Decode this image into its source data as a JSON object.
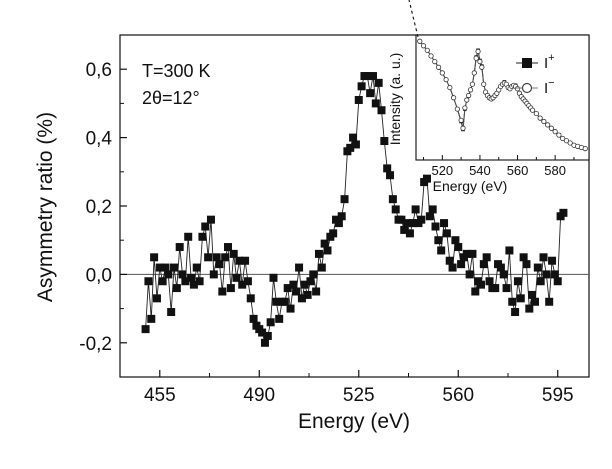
{
  "chart_data": [
    {
      "type": "scatter",
      "title": "",
      "xlabel": "Energy (eV)",
      "ylabel": "Asymmetry ratio (%)",
      "xlim": [
        441,
        606
      ],
      "ylim": [
        -0.3,
        0.7
      ],
      "xticks": [
        455,
        490,
        525,
        560,
        595
      ],
      "xtick_labels": [
        "455",
        "490",
        "525",
        "560",
        "595"
      ],
      "yticks": [
        -0.2,
        0.0,
        0.2,
        0.4,
        0.6
      ],
      "ytick_labels": [
        "-0,2",
        "0,0",
        "0,2",
        "0,4",
        "0,6"
      ],
      "zero_line": 0,
      "annotations": [
        "T=300 K",
        "2θ=12°"
      ],
      "series": [
        {
          "name": "Asymmetry ratio",
          "marker": "filled-square",
          "connected": true,
          "x": [
            450,
            451,
            452,
            453,
            454,
            455,
            456,
            457,
            458,
            459,
            460,
            461,
            462,
            463,
            464,
            465,
            466,
            467,
            468,
            469,
            470,
            471,
            472,
            473,
            474,
            475,
            476,
            477,
            478,
            479,
            480,
            481,
            482,
            483,
            484,
            485,
            486,
            487,
            488,
            489,
            490,
            491,
            492,
            493,
            494,
            495,
            496,
            497,
            498,
            499,
            500,
            501,
            502,
            503,
            504,
            505,
            506,
            507,
            508,
            509,
            510,
            511,
            512,
            513,
            514,
            515,
            516,
            517,
            518,
            519,
            520,
            521,
            522,
            523,
            524,
            525,
            526,
            527,
            528,
            529,
            530,
            531,
            532,
            533,
            534,
            535,
            536,
            537,
            538,
            539,
            540,
            541,
            542,
            543,
            544,
            545,
            546,
            547,
            548,
            549,
            550,
            551,
            552,
            553,
            554,
            555,
            556,
            557,
            558,
            559,
            560,
            561,
            562,
            563,
            564,
            565,
            566,
            567,
            568,
            569,
            570,
            571,
            572,
            573,
            574,
            575,
            576,
            577,
            578,
            579,
            580,
            581,
            582,
            583,
            584,
            585,
            586,
            587,
            588,
            589,
            590,
            591,
            592,
            593,
            594,
            595,
            596,
            597
          ],
          "y": [
            -0.16,
            -0.02,
            -0.13,
            0.05,
            -0.07,
            0.02,
            -0.02,
            0.02,
            0.0,
            -0.11,
            0.02,
            -0.04,
            0.08,
            0.0,
            -0.02,
            0.11,
            -0.01,
            -0.03,
            0.02,
            -0.02,
            0.11,
            0.14,
            0.05,
            0.16,
            0.0,
            0.05,
            0.03,
            -0.05,
            0.05,
            0.08,
            -0.04,
            0.06,
            -0.01,
            0.04,
            -0.03,
            0.04,
            -0.02,
            -0.07,
            -0.13,
            -0.15,
            -0.16,
            -0.17,
            -0.2,
            -0.18,
            -0.14,
            -0.01,
            -0.08,
            -0.13,
            -0.08,
            -0.08,
            -0.04,
            -0.1,
            -0.03,
            -0.05,
            0.02,
            -0.07,
            -0.03,
            -0.06,
            -0.02,
            0.0,
            -0.05,
            0.06,
            0.02,
            0.09,
            0.07,
            0.11,
            0.12,
            0.16,
            0.15,
            0.17,
            0.22,
            0.36,
            0.37,
            0.4,
            0.38,
            0.51,
            0.55,
            0.58,
            0.58,
            0.53,
            0.58,
            0.5,
            0.56,
            0.48,
            0.39,
            0.31,
            0.29,
            0.22,
            0.19,
            0.16,
            0.16,
            0.13,
            0.15,
            0.12,
            0.15,
            0.19,
            0.15,
            0.16,
            0.27,
            0.28,
            0.17,
            0.19,
            0.14,
            0.1,
            0.07,
            0.15,
            0.12,
            0.04,
            0.02,
            0.1,
            0.08,
            0.03,
            0.05,
            0.06,
            0.0,
            0.06,
            -0.05,
            -0.02,
            -0.03,
            0.03,
            0.05,
            -0.02,
            -0.04,
            -0.04,
            0.03,
            0.02,
            0.0,
            -0.04,
            0.07,
            -0.08,
            -0.11,
            -0.02,
            -0.07,
            0.05,
            0.03,
            -0.1,
            -0.06,
            -0.08,
            0.02,
            -0.02,
            0.05,
            0.0,
            -0.08,
            0.04,
            0.0,
            -0.02,
            0.17,
            0.18
          ]
        }
      ]
    },
    {
      "type": "line",
      "title": "",
      "xlabel": "Energy (eV)",
      "ylabel": "Intensity (a. u.)",
      "xlim": [
        506,
        598
      ],
      "ylim": [
        0,
        1
      ],
      "xticks": [
        520,
        540,
        560,
        580
      ],
      "xtick_labels": [
        "520",
        "540",
        "560",
        "580"
      ],
      "legend": {
        "position": "top-right",
        "entries": [
          {
            "base": "I",
            "sup": "+",
            "marker": "filled-square"
          },
          {
            "base": "I",
            "sup": "−",
            "marker": "open-circle"
          }
        ]
      },
      "series": [
        {
          "name": "I+",
          "marker": "filled-square",
          "x": [
            508,
            510,
            512,
            514,
            516,
            518,
            520,
            522,
            524,
            526,
            528,
            530,
            531,
            532,
            533,
            534,
            535,
            536,
            537,
            538,
            539,
            540,
            541,
            542,
            543,
            544,
            545,
            546,
            547,
            548,
            549,
            550,
            551,
            552,
            553,
            554,
            555,
            556,
            557,
            558,
            559,
            560,
            561,
            562,
            563,
            564,
            565,
            566,
            567,
            568,
            570,
            572,
            574,
            576,
            578,
            580,
            582,
            584,
            586,
            588,
            590,
            592,
            594,
            596
          ],
          "y": [
            0.98,
            0.94,
            0.9,
            0.85,
            0.8,
            0.75,
            0.7,
            0.64,
            0.57,
            0.48,
            0.38,
            0.27,
            0.2,
            0.38,
            0.46,
            0.5,
            0.55,
            0.6,
            0.7,
            0.84,
            0.9,
            0.81,
            0.76,
            0.6,
            0.53,
            0.5,
            0.48,
            0.47,
            0.48,
            0.5,
            0.52,
            0.55,
            0.58,
            0.6,
            0.62,
            0.6,
            0.57,
            0.56,
            0.58,
            0.59,
            0.59,
            0.56,
            0.52,
            0.49,
            0.47,
            0.45,
            0.43,
            0.41,
            0.39,
            0.37,
            0.34,
            0.3,
            0.27,
            0.24,
            0.21,
            0.18,
            0.15,
            0.12,
            0.1,
            0.08,
            0.06,
            0.05,
            0.04,
            0.03
          ]
        },
        {
          "name": "I−",
          "marker": "open-circle",
          "x": [
            508,
            510,
            512,
            514,
            516,
            518,
            520,
            522,
            524,
            526,
            528,
            530,
            531,
            532,
            533,
            534,
            535,
            536,
            537,
            538,
            539,
            540,
            541,
            542,
            543,
            544,
            545,
            546,
            547,
            548,
            549,
            550,
            551,
            552,
            553,
            554,
            555,
            556,
            557,
            558,
            559,
            560,
            561,
            562,
            563,
            564,
            565,
            566,
            567,
            568,
            570,
            572,
            574,
            576,
            578,
            580,
            582,
            584,
            586,
            588,
            590,
            592,
            594,
            596
          ],
          "y": [
            0.98,
            0.94,
            0.9,
            0.85,
            0.8,
            0.75,
            0.7,
            0.64,
            0.57,
            0.48,
            0.38,
            0.28,
            0.21,
            0.39,
            0.46,
            0.5,
            0.55,
            0.6,
            0.7,
            0.83,
            0.89,
            0.8,
            0.75,
            0.6,
            0.53,
            0.5,
            0.48,
            0.47,
            0.48,
            0.5,
            0.52,
            0.55,
            0.58,
            0.6,
            0.61,
            0.6,
            0.57,
            0.56,
            0.58,
            0.59,
            0.58,
            0.56,
            0.52,
            0.49,
            0.47,
            0.45,
            0.43,
            0.41,
            0.39,
            0.37,
            0.34,
            0.3,
            0.27,
            0.24,
            0.21,
            0.18,
            0.15,
            0.12,
            0.1,
            0.08,
            0.06,
            0.05,
            0.04,
            0.03
          ]
        }
      ]
    }
  ]
}
